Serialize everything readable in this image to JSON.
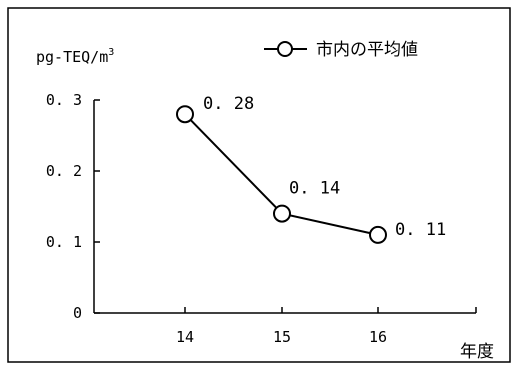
{
  "chart_data": {
    "type": "line",
    "unit_label": "pg-TEQ/m",
    "unit_superscript": "3",
    "xlabel": "年度",
    "categories": [
      "14",
      "15",
      "16"
    ],
    "series": [
      {
        "name": "市内の平均値",
        "values": [
          0.28,
          0.14,
          0.11
        ],
        "data_labels": [
          "0. 28",
          "0. 14",
          "0. 11"
        ]
      }
    ],
    "yticks": [
      0,
      0.1,
      0.2,
      0.3
    ],
    "ytick_labels": [
      "0",
      "0. 1",
      "0. 2",
      "0. 3"
    ],
    "ylim": [
      0,
      0.3
    ],
    "grid": false,
    "legend_position": "top-right",
    "line_color": "#000000",
    "marker": "open-circle"
  }
}
